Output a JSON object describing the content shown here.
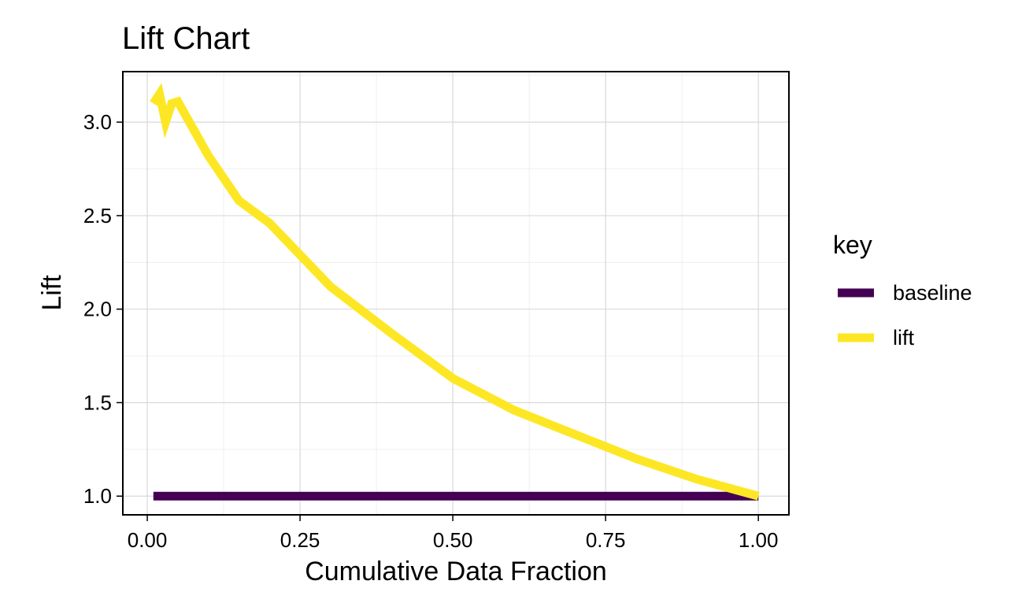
{
  "chart_data": {
    "type": "line",
    "title": "Lift Chart",
    "xlabel": "Cumulative Data Fraction",
    "ylabel": "Lift",
    "xlim": [
      -0.04,
      1.05
    ],
    "ylim": [
      0.9,
      3.27
    ],
    "xticks": [
      0.0,
      0.25,
      0.5,
      0.75,
      1.0
    ],
    "xtick_labels": [
      "0.00",
      "0.25",
      "0.50",
      "0.75",
      "1.00"
    ],
    "yticks": [
      1.0,
      1.5,
      2.0,
      2.5,
      3.0
    ],
    "ytick_labels": [
      "1.0",
      "1.5",
      "2.0",
      "2.5",
      "3.0"
    ],
    "grid": true,
    "legend": {
      "title": "key",
      "position": "right"
    },
    "series": [
      {
        "name": "baseline",
        "color": "#440154",
        "x": [
          0.01,
          1.0
        ],
        "y": [
          1.0,
          1.0
        ]
      },
      {
        "name": "lift",
        "color": "#FDE725",
        "x": [
          0.01,
          0.02,
          0.03,
          0.04,
          0.05,
          0.1,
          0.15,
          0.2,
          0.3,
          0.4,
          0.5,
          0.6,
          0.7,
          0.8,
          0.9,
          1.0
        ],
        "y": [
          3.1,
          3.15,
          3.0,
          3.1,
          3.11,
          2.82,
          2.58,
          2.46,
          2.12,
          1.87,
          1.63,
          1.46,
          1.33,
          1.2,
          1.09,
          1.0
        ]
      }
    ]
  }
}
